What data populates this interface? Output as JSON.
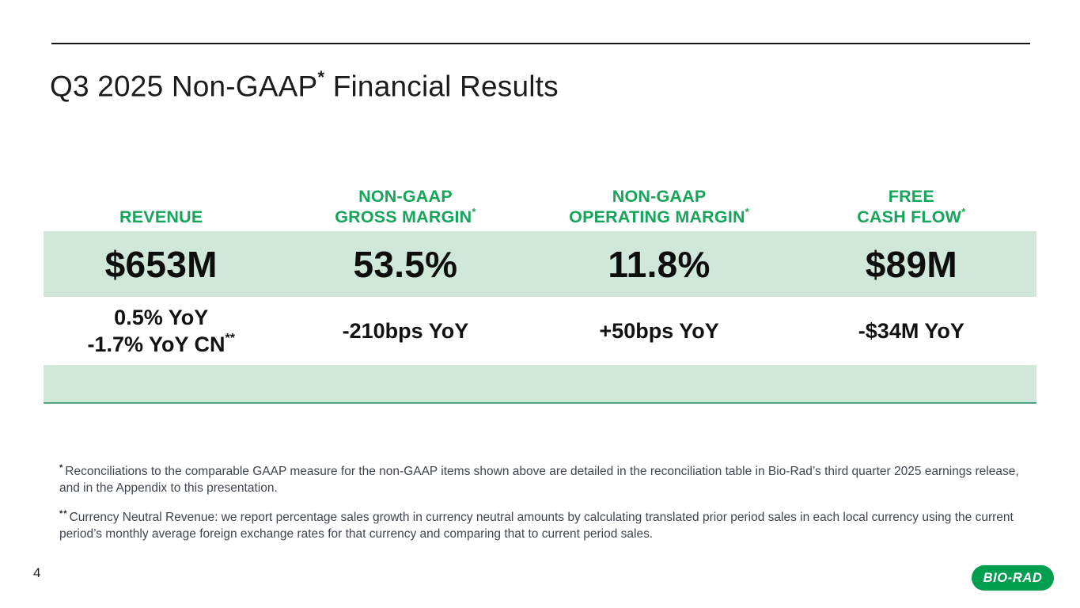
{
  "colors": {
    "accent_green": "#17a45b",
    "band_green": "#cfe8da",
    "rule_green": "#4fa580",
    "logo_green": "#009e4f",
    "text_dark": "#1a1a1a",
    "footnote_gray": "#3f454c"
  },
  "header": {
    "title_main": "Q3 2025 Non-GAAP",
    "title_sup": "*",
    "title_rest": " Financial Results"
  },
  "table": {
    "columns": [
      {
        "header_lines": [
          "REVENUE"
        ],
        "value": "$653M",
        "change_lines": [
          "0.5% YoY",
          "-1.7% YoY CN"
        ],
        "change_sup": "**"
      },
      {
        "header_lines": [
          "NON-GAAP",
          "GROSS MARGIN"
        ],
        "header_sup": "*",
        "value": "53.5%",
        "change_lines": [
          "-210bps YoY"
        ]
      },
      {
        "header_lines": [
          "NON-GAAP",
          "OPERATING MARGIN"
        ],
        "header_sup": "*",
        "value": "11.8%",
        "change_lines": [
          "+50bps YoY"
        ]
      },
      {
        "header_lines": [
          "FREE",
          "CASH FLOW"
        ],
        "header_sup": "*",
        "value": "$89M",
        "change_lines": [
          "-$34M YoY"
        ]
      }
    ]
  },
  "footnotes": [
    {
      "sup": "*",
      "text": "Reconciliations to the comparable GAAP measure for the non-GAAP items shown above are detailed in the reconciliation table in Bio-Rad’s third quarter 2025 earnings release, and in the Appendix to this presentation."
    },
    {
      "sup": "**",
      "text": "Currency Neutral Revenue: we report percentage sales growth in currency neutral amounts by calculating translated prior period sales in each local currency using the current period’s monthly average foreign exchange rates for that currency and comparing that to current period sales."
    }
  ],
  "footer": {
    "page_number": "4",
    "logo_text": "BIO-RAD"
  }
}
